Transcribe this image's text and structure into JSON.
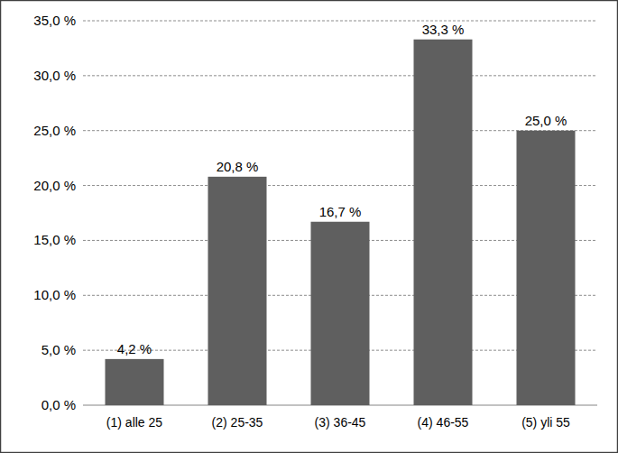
{
  "chart_data": {
    "type": "bar",
    "categories": [
      "(1) alle 25",
      "(2) 25-35",
      "(3) 36-45",
      "(4) 46-55",
      "(5) yli 55"
    ],
    "values": [
      4.2,
      20.8,
      16.7,
      33.3,
      25.0
    ],
    "value_labels": [
      "4,2 %",
      "20,8 %",
      "16,7 %",
      "33,3 %",
      "25,0 %"
    ],
    "color": "#5f5f5f",
    "ylim": [
      0,
      35
    ],
    "yticks": [
      {
        "value": 0,
        "label": "0,0 %"
      },
      {
        "value": 5,
        "label": "5,0 %"
      },
      {
        "value": 10,
        "label": "10,0 %"
      },
      {
        "value": 15,
        "label": "15,0 %"
      },
      {
        "value": 20,
        "label": "20,0 %"
      },
      {
        "value": 25,
        "label": "25,0 %"
      },
      {
        "value": 30,
        "label": "30,0 %"
      },
      {
        "value": 35,
        "label": "35,0 %"
      }
    ],
    "grid": true,
    "data_labels": true
  }
}
